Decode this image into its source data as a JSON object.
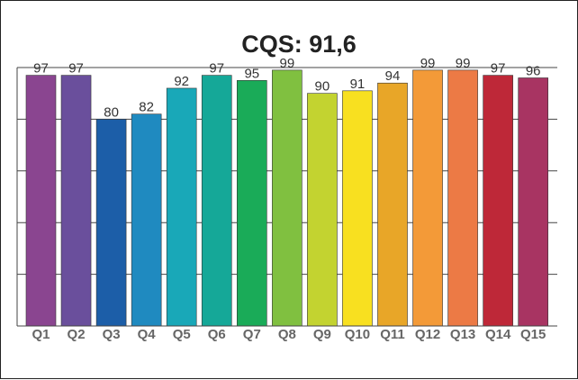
{
  "chart_data": {
    "type": "bar",
    "title": "CQS: 91,6",
    "categories": [
      "Q1",
      "Q2",
      "Q3",
      "Q4",
      "Q5",
      "Q6",
      "Q7",
      "Q8",
      "Q9",
      "Q10",
      "Q11",
      "Q12",
      "Q13",
      "Q14",
      "Q15"
    ],
    "values": [
      97,
      97,
      80,
      82,
      92,
      97,
      95,
      99,
      90,
      91,
      94,
      99,
      99,
      97,
      96
    ],
    "data_labels": [
      "97",
      "97",
      "80",
      "82",
      "92",
      "97",
      "95",
      "99",
      "90",
      "91",
      "94",
      "99",
      "99",
      "97",
      "96"
    ],
    "colors": [
      "#8a4590",
      "#6a4f9c",
      "#1c5ea8",
      "#1f8ac0",
      "#19a8b8",
      "#15a898",
      "#1aab58",
      "#80c040",
      "#c3d330",
      "#f8e020",
      "#e8a628",
      "#f39a38",
      "#ec7a45",
      "#be2838",
      "#a83462"
    ],
    "ylim": [
      0,
      100
    ],
    "grid": true,
    "legend": "none"
  }
}
